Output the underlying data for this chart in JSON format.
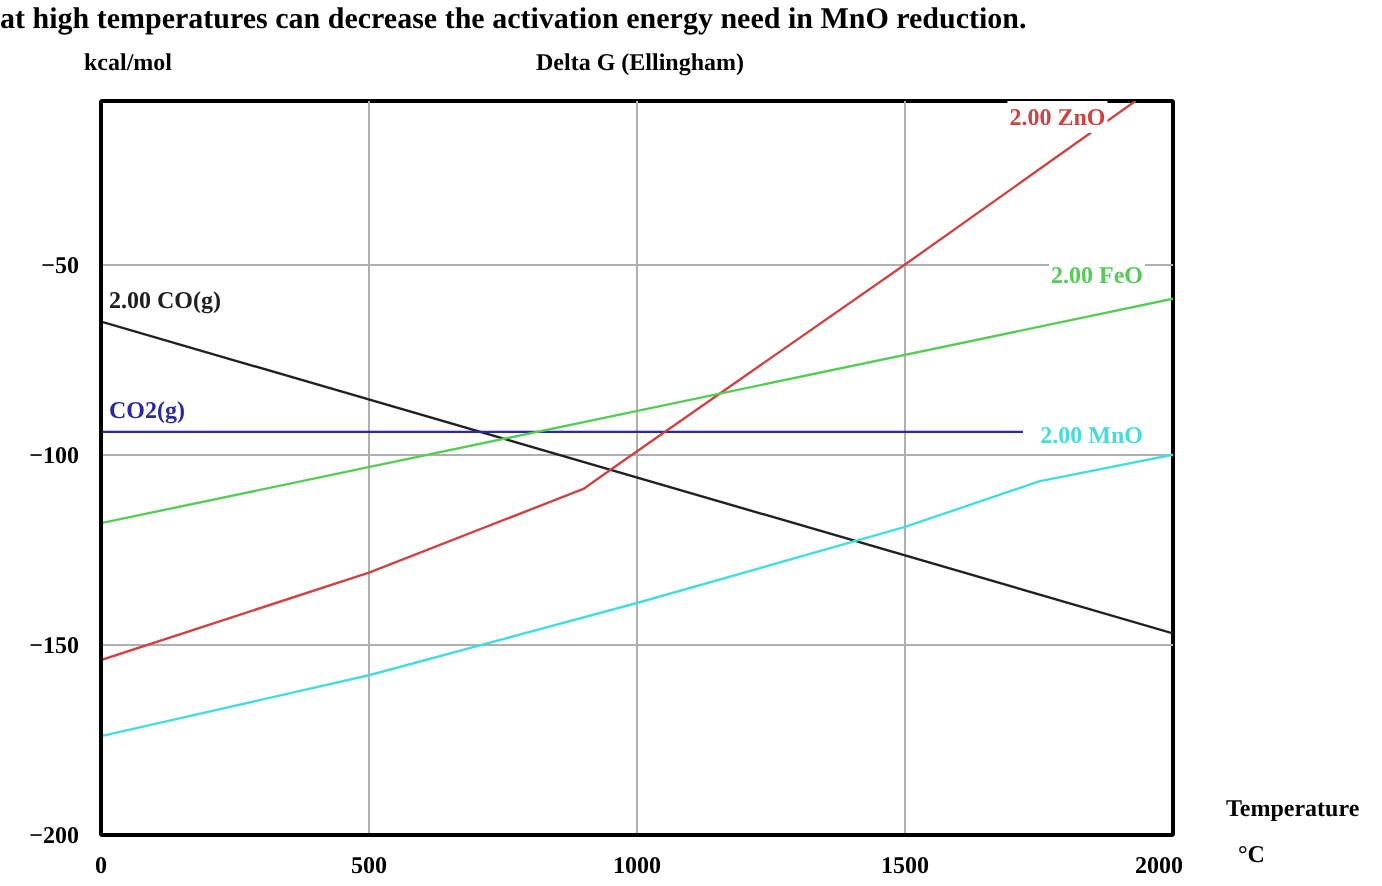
{
  "chart_data": {
    "type": "line",
    "title": "Delta G (Ellingham)",
    "ylabel": "kcal/mol",
    "xlabel": "Temperature °C",
    "annotations": [
      "at high temperatures can decrease the activation energy need in MnO reduction."
    ],
    "xlim": [
      0,
      2000
    ],
    "ylim": [
      -200,
      -7
    ],
    "xticks": [
      0,
      500,
      1000,
      1500,
      2000
    ],
    "yticks": [
      -200,
      -150,
      -100,
      -50
    ],
    "grid": true,
    "series": [
      {
        "name": "2.00 CO(g)",
        "color": "#202020",
        "x": [
          0,
          2000
        ],
        "values": [
          -65,
          -147
        ]
      },
      {
        "name": "CO2(g)",
        "color": "#2a2aa0",
        "x": [
          0,
          1720
        ],
        "values": [
          -94,
          -94
        ]
      },
      {
        "name": "2.00 ZnO",
        "color": "#cc4444",
        "x": [
          0,
          500,
          900,
          950,
          1500,
          1930
        ],
        "values": [
          -154,
          -131,
          -109,
          -104,
          -50,
          -7
        ]
      },
      {
        "name": "2.00 FeO",
        "color": "#55cc55",
        "x": [
          0,
          2000
        ],
        "values": [
          -118,
          -59
        ]
      },
      {
        "name": "2.00 MnO",
        "color": "#44dddd",
        "x": [
          0,
          500,
          1000,
          1500,
          1750,
          2000
        ],
        "values": [
          -174,
          -158,
          -139,
          -119,
          -107,
          -100
        ]
      }
    ]
  }
}
